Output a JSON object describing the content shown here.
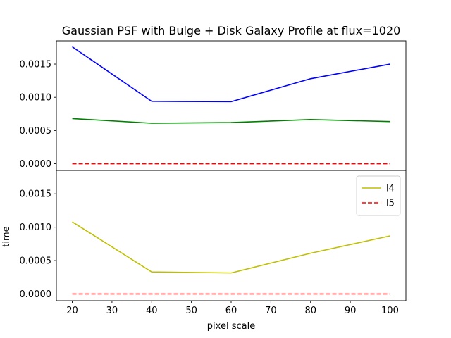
{
  "chart_data": {
    "type": "line",
    "title": "Gaussian PSF with Bulge + Disk Galaxy Profile at flux=1020",
    "xlabel": "pixel scale",
    "ylabel": "time",
    "x": [
      20,
      40,
      60,
      80,
      100
    ],
    "xlim": [
      16,
      104
    ],
    "xticks": [
      20,
      30,
      40,
      50,
      60,
      70,
      80,
      90,
      100
    ],
    "ylim": [
      -0.0001,
      0.00185
    ],
    "yticks": [
      "0.0000",
      "0.0005",
      "0.0010",
      "0.0015"
    ],
    "ytick_values": [
      0,
      0.0005,
      0.001,
      0.0015
    ],
    "shared_x": true,
    "shared_y": true,
    "grid": false,
    "panels": [
      {
        "position": "top",
        "series": [
          {
            "color": "#0000ff",
            "style": "solid",
            "values": [
              0.00176,
              0.00094,
              0.000935,
              0.00128,
              0.0015
            ]
          },
          {
            "color": "#008000",
            "style": "solid",
            "values": [
              0.00068,
              0.00061,
              0.00062,
              0.000665,
              0.000635
            ]
          },
          {
            "color": "#ff0000",
            "style": "dashed",
            "values": [
              0,
              0,
              0,
              0,
              0
            ]
          }
        ]
      },
      {
        "position": "bottom",
        "legend": "top-right",
        "series": [
          {
            "name": "l4",
            "color": "#bfbf00",
            "style": "solid",
            "values": [
              0.00108,
              0.00033,
              0.000315,
              0.00061,
              0.00087
            ]
          },
          {
            "name": "l5",
            "color": "#ff0000",
            "style": "dashed",
            "values": [
              0,
              0,
              0,
              0,
              0
            ]
          }
        ]
      }
    ]
  }
}
